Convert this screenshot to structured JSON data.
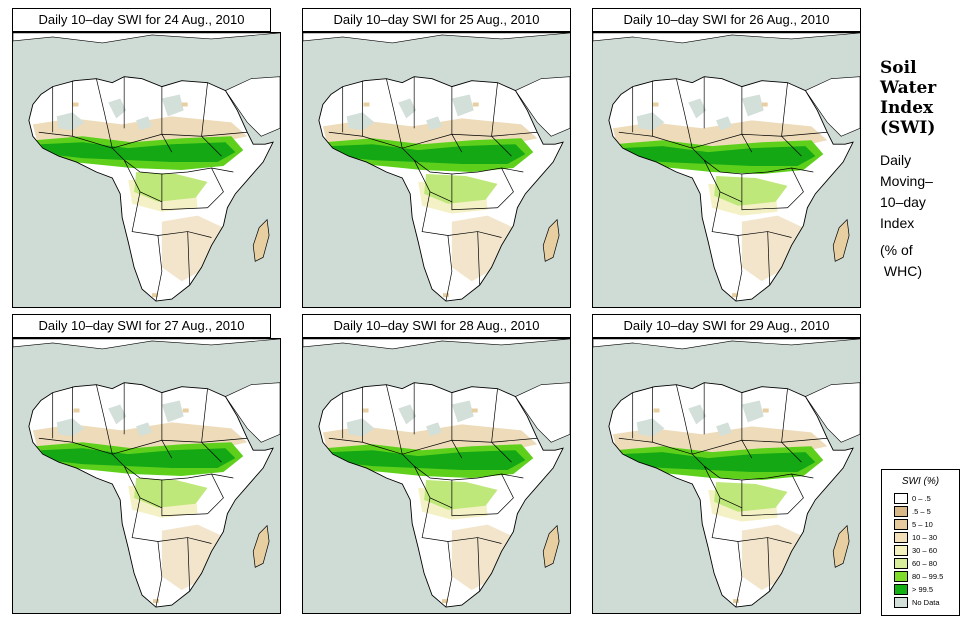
{
  "panels": [
    {
      "title": "Daily 10–day SWI for  24 Aug., 2010",
      "variant": 0
    },
    {
      "title": "Daily 10–day SWI for  25 Aug., 2010",
      "variant": 1
    },
    {
      "title": "Daily 10–day SWI for  26 Aug., 2010",
      "variant": 2
    },
    {
      "title": "Daily 10–day SWI for  27 Aug., 2010",
      "variant": 3
    },
    {
      "title": "Daily 10–day SWI for  28 Aug., 2010",
      "variant": 4
    },
    {
      "title": "Daily 10–day SWI for  29 Aug., 2010",
      "variant": 5
    }
  ],
  "side": {
    "title_lines": [
      "Soil",
      "Water",
      "Index",
      "(SWI)"
    ],
    "sub_lines": [
      "Daily",
      "Moving–",
      "10–day",
      "Index"
    ],
    "unit_lines": [
      "(% of",
      " WHC)"
    ]
  },
  "legend": {
    "title": "SWI (%)",
    "items": [
      {
        "label": "0 – .5",
        "color": "#ffffff"
      },
      {
        "label": ".5 – 5",
        "color": "#d8b887"
      },
      {
        "label": "5 – 10",
        "color": "#e6c99c"
      },
      {
        "label": "10 – 30",
        "color": "#f3e0b8"
      },
      {
        "label": "30 – 60",
        "color": "#f5f2c0"
      },
      {
        "label": "60 – 80",
        "color": "#d9ee9a"
      },
      {
        "label": "80 – 99.5",
        "color": "#7fdc2a"
      },
      {
        "label": "> 99.5",
        "color": "#12b012"
      },
      {
        "label": "No Data",
        "color": "#d3dfd9"
      }
    ]
  },
  "colors": {
    "ocean": "#cfdcd6",
    "land": "#ffffff",
    "tan": "#e7cfa2",
    "pale": "#f5f1c6",
    "lightgreen": "#bfe87a",
    "green": "#5ed01c",
    "darkgreen": "#14a814",
    "nodata": "#d3dfd9"
  }
}
